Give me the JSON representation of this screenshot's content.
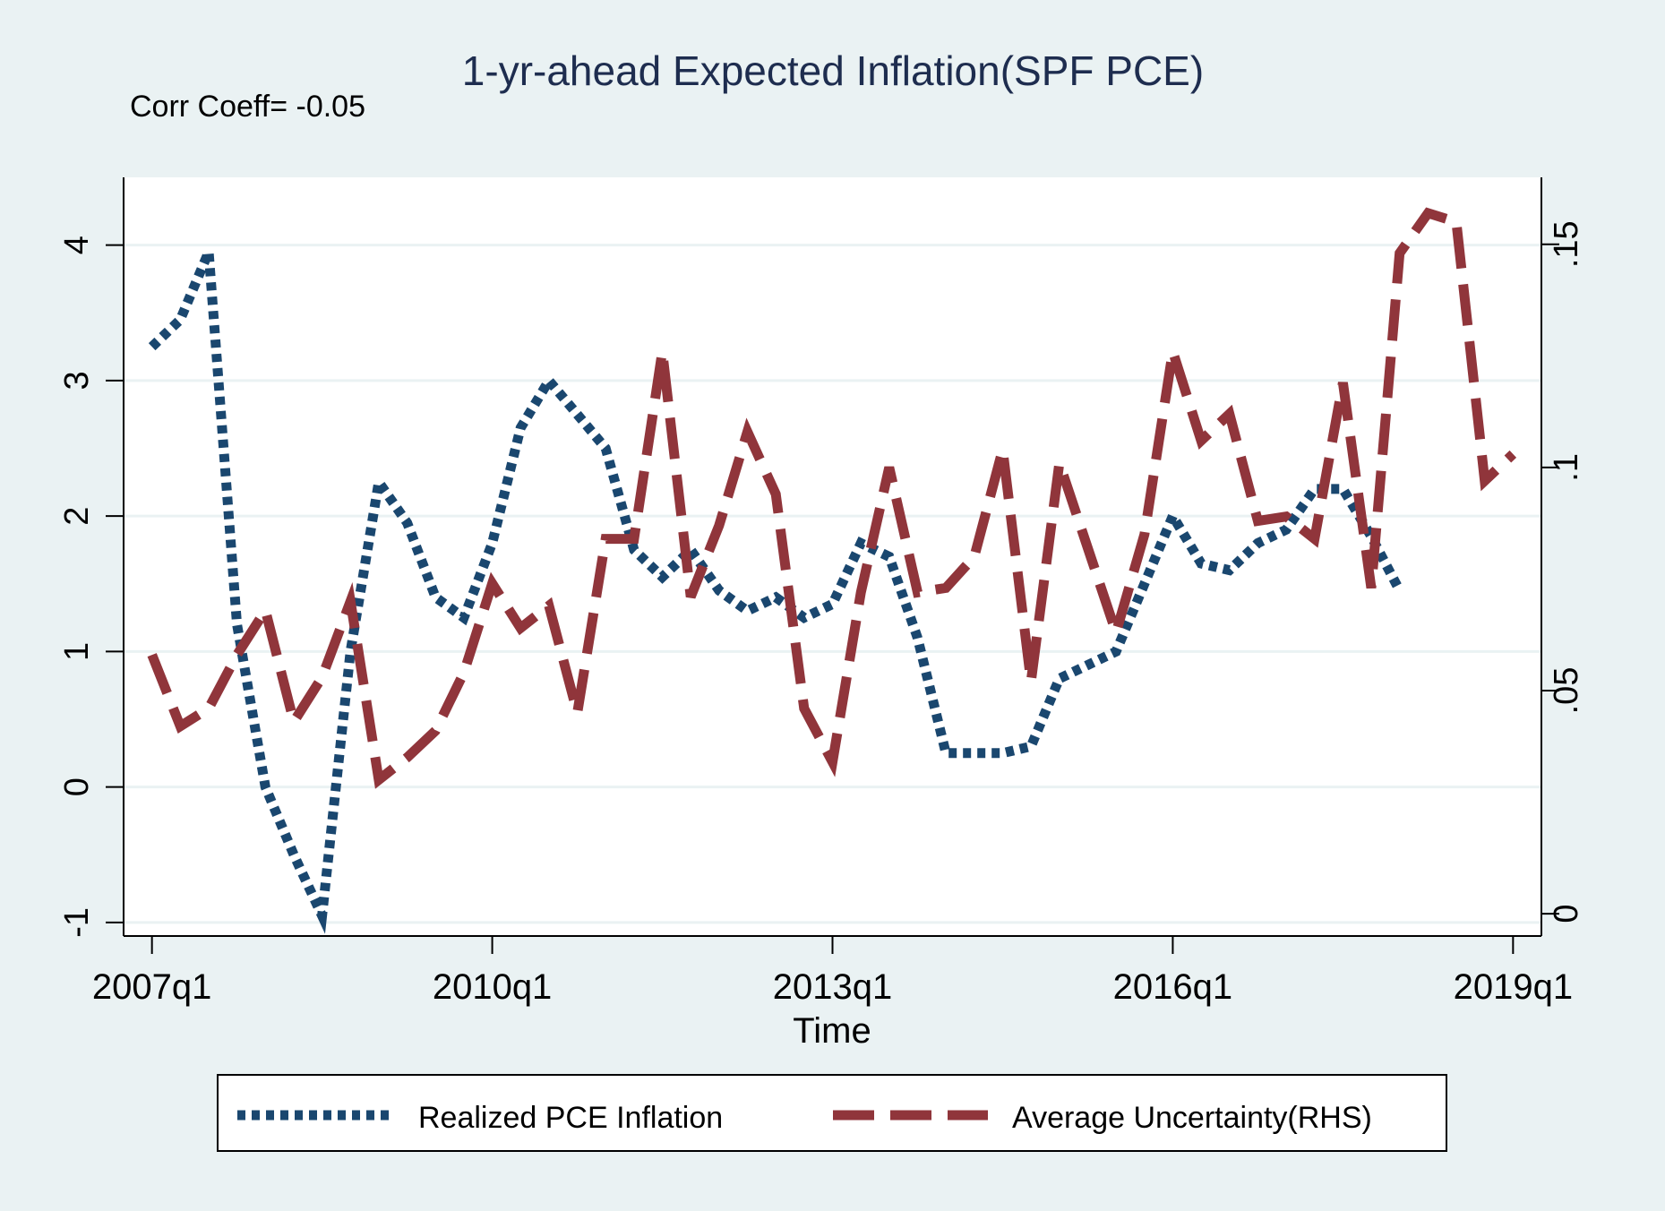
{
  "chart_data": {
    "type": "line",
    "title": "1-yr-ahead Expected Inflation(SPF PCE)",
    "annotation": "Corr Coeff= -0.05",
    "xlabel": "Time",
    "x_ticks": [
      "2007q1",
      "2010q1",
      "2013q1",
      "2016q1",
      "2019q1"
    ],
    "x_tick_values": [
      2007.0,
      2010.0,
      2013.0,
      2016.0,
      2019.0
    ],
    "xlim": [
      2006.75,
      2019.25
    ],
    "y_left": {
      "ticks": [
        "-1",
        "0",
        "1",
        "2",
        "3",
        "4"
      ],
      "values": [
        -1,
        0,
        1,
        2,
        3,
        4
      ],
      "lim": [
        -1.1,
        4.5
      ]
    },
    "y_right": {
      "ticks": [
        "0",
        ".05",
        ".1",
        ".15"
      ],
      "values": [
        0,
        0.05,
        0.1,
        0.15
      ],
      "lim": [
        -0.005,
        0.165
      ]
    },
    "grid": true,
    "legend_position": "bottom",
    "series": [
      {
        "name": "Realized PCE Inflation",
        "axis": "left",
        "style": "dotted",
        "color": "#1a476f",
        "x": [
          2007.0,
          2007.25,
          2007.5,
          2007.75,
          2008.0,
          2008.25,
          2008.5,
          2008.75,
          2009.0,
          2009.25,
          2009.5,
          2009.75,
          2010.0,
          2010.25,
          2010.5,
          2010.75,
          2011.0,
          2011.25,
          2011.5,
          2011.75,
          2012.0,
          2012.25,
          2012.5,
          2012.75,
          2013.0,
          2013.25,
          2013.5,
          2013.75,
          2014.0,
          2014.25,
          2014.5,
          2014.75,
          2015.0,
          2015.25,
          2015.5,
          2015.75,
          2016.0,
          2016.25,
          2016.5,
          2016.75,
          2017.0,
          2017.25,
          2017.5,
          2017.75,
          2018.0
        ],
        "y": [
          3.25,
          3.45,
          3.95,
          1.2,
          0.0,
          -0.5,
          -0.95,
          1.0,
          2.25,
          1.95,
          1.4,
          1.25,
          1.8,
          2.65,
          3.0,
          2.75,
          2.5,
          1.75,
          1.55,
          1.75,
          1.45,
          1.3,
          1.4,
          1.25,
          1.35,
          1.8,
          1.7,
          1.1,
          0.25,
          0.25,
          0.25,
          0.3,
          0.8,
          0.9,
          1.0,
          1.5,
          2.0,
          1.65,
          1.6,
          1.8,
          1.9,
          2.2,
          2.2,
          1.85,
          1.45
        ]
      },
      {
        "name": "Average Uncertainty(RHS)",
        "axis": "right",
        "style": "dashed",
        "color": "#90353b",
        "x": [
          2007.0,
          2007.25,
          2007.5,
          2007.75,
          2008.0,
          2008.25,
          2008.5,
          2008.75,
          2009.0,
          2009.25,
          2009.5,
          2009.75,
          2010.0,
          2010.25,
          2010.5,
          2010.75,
          2011.0,
          2011.25,
          2011.5,
          2011.75,
          2012.0,
          2012.25,
          2012.5,
          2012.75,
          2013.0,
          2013.25,
          2013.5,
          2013.75,
          2014.0,
          2014.25,
          2014.5,
          2014.75,
          2015.0,
          2015.25,
          2015.5,
          2015.75,
          2016.0,
          2016.25,
          2016.5,
          2016.75,
          2017.0,
          2017.25,
          2017.5,
          2017.75,
          2018.0,
          2018.25,
          2018.5,
          2018.75,
          2019.0
        ],
        "y": [
          0.058,
          0.042,
          0.046,
          0.058,
          0.068,
          0.043,
          0.053,
          0.07,
          0.03,
          0.035,
          0.041,
          0.054,
          0.074,
          0.064,
          0.069,
          0.045,
          0.084,
          0.084,
          0.126,
          0.071,
          0.087,
          0.108,
          0.094,
          0.046,
          0.034,
          0.072,
          0.1,
          0.072,
          0.073,
          0.08,
          0.104,
          0.052,
          0.101,
          0.082,
          0.063,
          0.085,
          0.126,
          0.106,
          0.112,
          0.088,
          0.089,
          0.084,
          0.119,
          0.073,
          0.148,
          0.157,
          0.155,
          0.097,
          0.103
        ]
      }
    ]
  }
}
